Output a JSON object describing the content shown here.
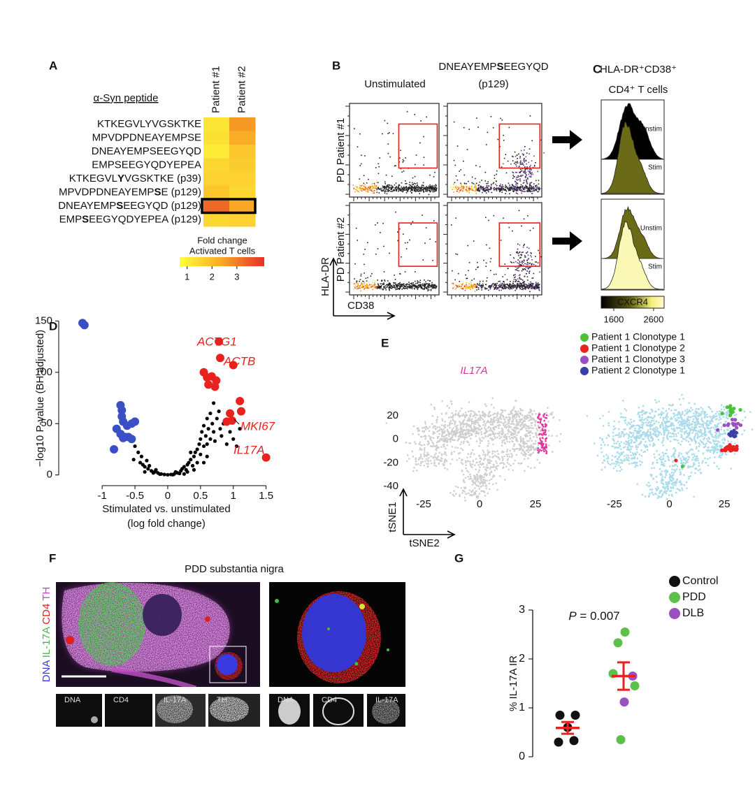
{
  "panel_labels": [
    "A",
    "B",
    "C",
    "D",
    "E",
    "F",
    "G"
  ],
  "chart_data": [
    {
      "type": "heatmap",
      "title": "α-Syn peptide",
      "columns": [
        "Patient #1",
        "Patient #2"
      ],
      "rows": [
        [
          "KTKEGVLYVGSKTKE"
        ],
        [
          "MPVDPDNEAYEMPSE"
        ],
        [
          "DNEAYEMPSEEGYQD"
        ],
        [
          "EMPSEEGYQDYEPEA"
        ],
        [
          "KTKEGVL",
          "Y",
          "VGSKTKE (p39)"
        ],
        [
          "MPVDPDNEAYEMP",
          "S",
          "E (p129)"
        ],
        [
          "DNEAYEMP",
          "S",
          "EEGYQD (p129)"
        ],
        [
          "EMP",
          "S",
          "EEGYQDYEPEA (p129)"
        ]
      ],
      "values": [
        [
          1.2,
          2.6
        ],
        [
          1.3,
          2.3
        ],
        [
          1.1,
          1.8
        ],
        [
          1.5,
          1.7
        ],
        [
          1.6,
          1.6
        ],
        [
          1.8,
          1.5
        ],
        [
          3.3,
          2.4
        ],
        [
          1.5,
          1.6
        ]
      ],
      "colorbar_title": [
        "Fold change",
        "Activated T cells"
      ],
      "zlim": [
        0.7,
        4.1
      ],
      "zticks": [
        1,
        2,
        3
      ],
      "colors": [
        "#ffff3c",
        "#f9a825",
        "#e53027"
      ]
    },
    {
      "type": "scatter",
      "ylabel": "−log10 P-value (BH adjusted)",
      "xlabel": [
        "Stimulated vs. unstimulated",
        "(log fold change)"
      ],
      "xlim": [
        -1.62,
        1.6
      ],
      "ylim": [
        -7,
        155
      ],
      "xticks": [
        -1,
        -0.5,
        0,
        0.5,
        1,
        1.5
      ],
      "yticks": [
        0,
        50,
        100,
        150
      ],
      "series": [
        {
          "color": "#000000",
          "x": [
            -0.45,
            -0.4,
            -0.42,
            -0.38,
            -0.35,
            -0.3,
            -0.28,
            -0.25,
            -0.2,
            -0.18,
            -0.15,
            -0.1,
            -0.05,
            0,
            0.05,
            0.1,
            0.12,
            0.15,
            0.2,
            0.22,
            0.25,
            0.28,
            0.3,
            0.32,
            0.35,
            0.38,
            0.4,
            0.42,
            0.45,
            0.48,
            0.5,
            0.5,
            0.52,
            0.55,
            0.55,
            0.58,
            0.6,
            0.6,
            0.62,
            0.65,
            0.65,
            0.68,
            0.7,
            0.7,
            0.72,
            0.75,
            0.78,
            0.8,
            0.82,
            0.85,
            0.9,
            0.95,
            1.0,
            1.05,
            1.1,
            -0.5,
            -0.52,
            -0.32,
            0.35,
            0.45,
            0.3,
            -0.12,
            0.08,
            0.18,
            -0.22,
            0.4,
            0.55,
            0.6,
            0.25,
            -0.35
          ],
          "y": [
            22,
            18,
            12,
            10,
            8,
            6,
            9,
            4,
            3,
            5,
            2,
            1,
            0.5,
            0.2,
            0.5,
            1,
            3,
            2,
            4,
            6,
            8,
            5,
            10,
            12,
            15,
            9,
            18,
            22,
            25,
            30,
            20,
            35,
            42,
            28,
            48,
            38,
            55,
            30,
            45,
            60,
            35,
            50,
            70,
            42,
            33,
            55,
            62,
            45,
            38,
            50,
            30,
            42,
            35,
            28,
            45,
            28,
            15,
            14,
            22,
            12,
            3,
            0.8,
            0.3,
            1.5,
            2,
            5,
            12,
            18,
            1,
            3
          ]
        },
        {
          "color": "#3a4fc4",
          "x": [
            -1.3,
            -1.27,
            -0.72,
            -0.7,
            -0.7,
            -0.68,
            -0.62,
            -0.55,
            -0.5,
            -0.78,
            -0.72,
            -0.65,
            -0.6,
            -0.55,
            -0.68,
            -0.82
          ],
          "y": [
            148,
            146,
            68,
            63,
            57,
            52,
            48,
            50,
            52,
            45,
            40,
            37,
            37,
            35,
            36,
            25
          ]
        },
        {
          "color": "#e8231f",
          "x": [
            0.78,
            0.8,
            0.55,
            0.6,
            0.67,
            0.62,
            0.72,
            1.0,
            1.1,
            1.12,
            0.95,
            0.98,
            0.9,
            1.5,
            0.74
          ],
          "y": [
            130,
            114,
            100,
            95,
            96,
            88,
            86,
            107,
            72,
            62,
            60,
            53,
            52,
            17,
            92
          ]
        }
      ],
      "annotations": [
        "ACTG1",
        "ACTB",
        "MKI67",
        "IL17A"
      ],
      "annotation_color": "#e8231f"
    },
    {
      "type": "tsne",
      "title": "IL17A",
      "title_color": "#e0359f",
      "xlim": [
        -30,
        30
      ],
      "ylim": [
        -52,
        35
      ],
      "xticks": [
        -25,
        0,
        25
      ],
      "yticks": [
        20,
        0,
        -20,
        -40
      ],
      "xlabel": "tSNE2",
      "ylabel": "tSNE1"
    },
    {
      "type": "tsne",
      "xlim": [
        -31,
        31
      ],
      "ylim": [
        -52,
        35
      ],
      "xticks": [
        -25,
        0,
        25
      ],
      "legend": [
        {
          "name": "Patient 1 Clonotype 1",
          "color": "#4cc13a"
        },
        {
          "name": "Patient 1 Clonotype 2",
          "color": "#e8231f"
        },
        {
          "name": "Patient 1 Clonotype 3",
          "color": "#9b4fc1"
        },
        {
          "name": "Patient 2 Clonotype 1",
          "color": "#3a3fa8"
        }
      ]
    },
    {
      "type": "dotplot",
      "ylabel": "% IL-17A IR",
      "ylim": [
        0,
        3
      ],
      "yticks": [
        0,
        1,
        2,
        3
      ],
      "annotation": [
        "P",
        " = 0.007"
      ],
      "series": [
        {
          "name": "Control",
          "color": "#111111",
          "values": [
            0.85,
            0.85,
            0.6,
            0.3,
            0.33
          ]
        },
        {
          "name": "PDD",
          "color": "#5cc04a",
          "values": [
            2.55,
            2.33,
            1.7,
            1.45,
            0.35
          ]
        },
        {
          "name": "DLB",
          "color": "#9b4fc1",
          "values": [
            1.65,
            1.12
          ]
        }
      ],
      "summary": [
        {
          "mean": 0.59,
          "sem": 0.12
        },
        {
          "mean": 1.65,
          "sem": 0.28
        }
      ],
      "summary_color": "#e8231f"
    }
  ],
  "flow": {
    "title": [
      "DNEAYEMP",
      "S",
      "EEGYQD"
    ],
    "subtitle": "(p129)",
    "column": "Unstimulated",
    "rows": [
      "PD Patient #1",
      "PD Patient #2"
    ],
    "ylabel": "HLA-DR",
    "xlabel": "CD38"
  },
  "histograms": {
    "title": [
      "HLA-DR⁺CD38⁺",
      "CD4⁺ T cells"
    ],
    "labels": [
      [
        "Unstim",
        "Stim"
      ],
      [
        "Unstim",
        "Stim"
      ]
    ],
    "colorbar": {
      "title": "CXCR4",
      "lim": [
        1285,
        2865
      ],
      "ticks": [
        1600,
        2600
      ]
    }
  },
  "microscopy": {
    "title": "PDD substantia nigra",
    "channels": [
      {
        "name": "DNA",
        "color": "#3a3adf"
      },
      {
        "name": "IL-17A",
        "color": "#3fbf3f"
      },
      {
        "name": "CD4",
        "color": "#e0201e"
      },
      {
        "name": "TH",
        "color": "#d040d0"
      }
    ],
    "left_thumbs": [
      "DNA",
      "CD4",
      "IL-17A",
      "TH"
    ],
    "right_thumbs": [
      "DNA",
      "CD4",
      "IL-17A"
    ]
  }
}
